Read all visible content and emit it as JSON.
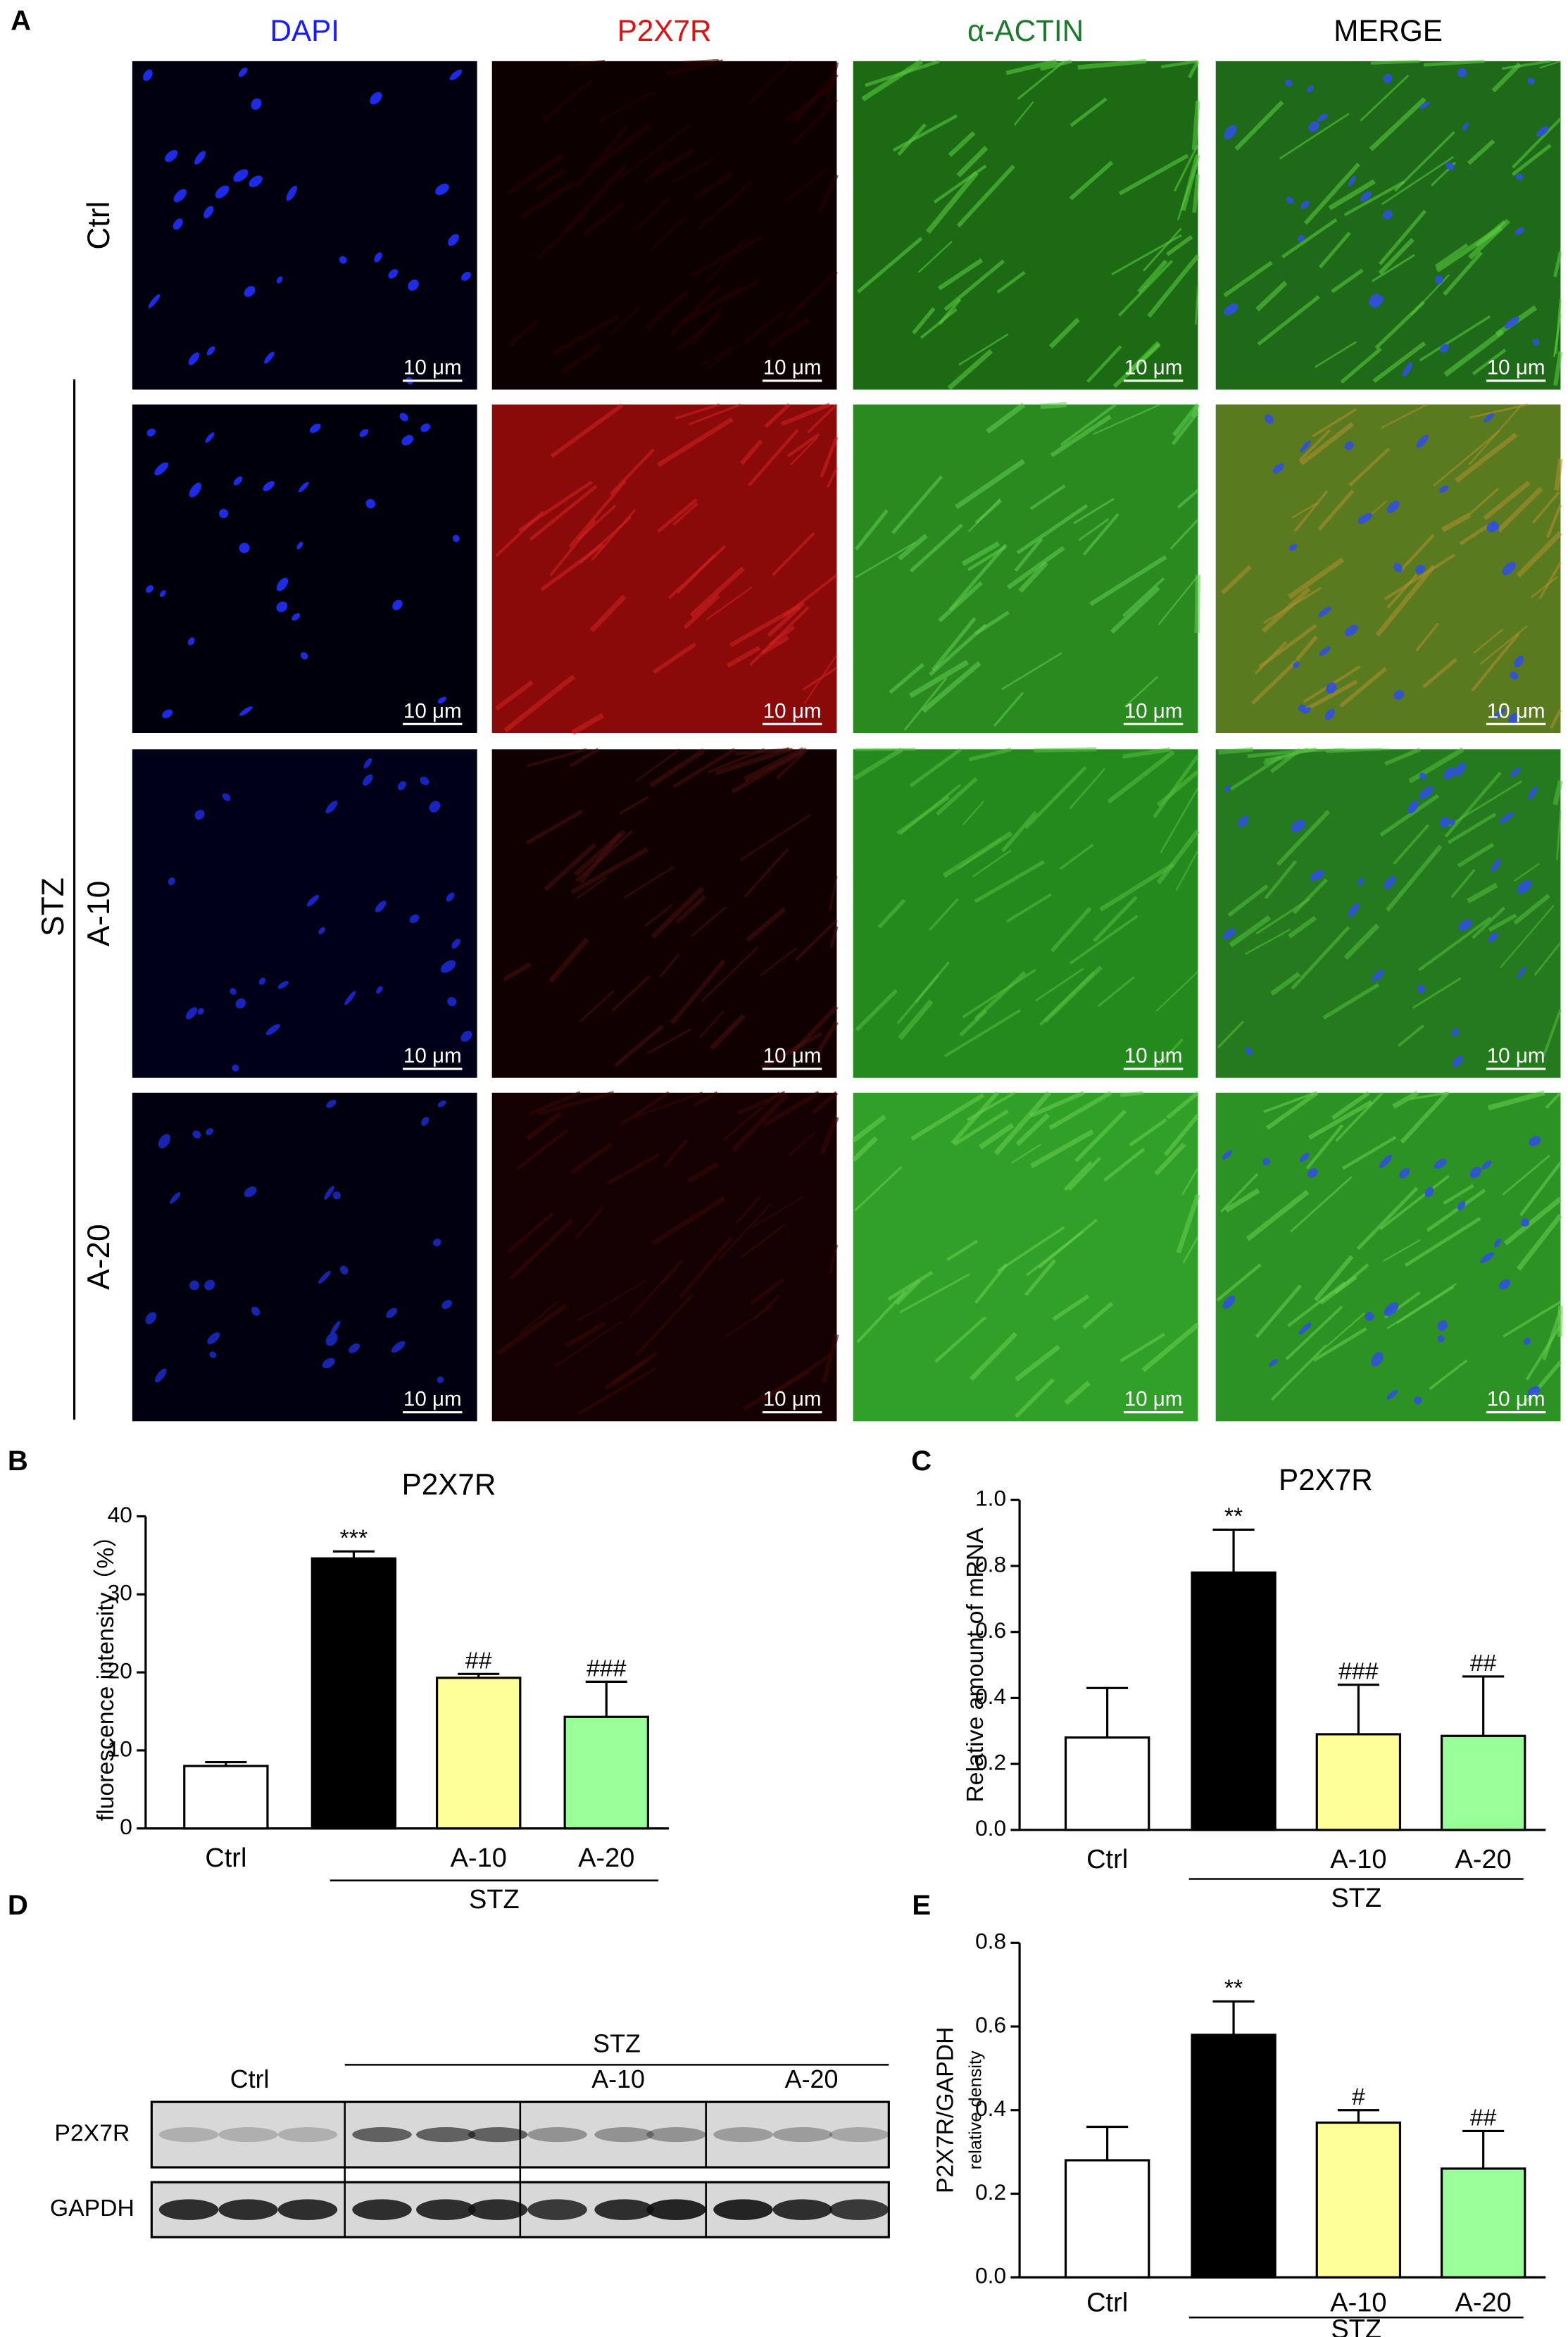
{
  "letters": [
    "A",
    "B",
    "C",
    "D",
    "E"
  ],
  "panel_a": {
    "columns": [
      "DAPI",
      "P2X7R",
      "α-ACTIN",
      "MERGE"
    ],
    "rows": [
      "Ctrl",
      "A-10",
      "A-20"
    ],
    "group": "STZ",
    "scale_bar": "10 μm"
  },
  "panel_d": {
    "group": "STZ",
    "groups": [
      "Ctrl",
      "A-10",
      "A-20"
    ],
    "rows": [
      "P2X7R",
      "GAPDH"
    ]
  },
  "chart_data": [
    {
      "type": "bar",
      "title": "P2X7R",
      "ylabel": "fluorescence intensity（%）",
      "categories": [
        "Ctrl",
        null,
        "A-10",
        "A-20"
      ],
      "group_label": "STZ",
      "series": [
        {
          "values": [
            8,
            34.6,
            19.3,
            14.3
          ],
          "errors": [
            0.5,
            0.9,
            0.5,
            4.5
          ],
          "colors": [
            "#ffffff",
            "#000000",
            "#ffff99",
            "#99ff99"
          ],
          "annotations": [
            null,
            "***",
            "##",
            "###"
          ]
        }
      ],
      "ylim": [
        0,
        40
      ],
      "yticks": [
        0,
        10,
        20,
        30,
        40
      ]
    },
    {
      "type": "bar",
      "title": "P2X7R",
      "ylabel": "Relative amount of mRNA",
      "categories": [
        "Ctrl",
        null,
        "A-10",
        "A-20"
      ],
      "group_label": "STZ",
      "series": [
        {
          "values": [
            0.28,
            0.78,
            0.29,
            0.285
          ],
          "errors": [
            0.15,
            0.13,
            0.15,
            0.18
          ],
          "colors": [
            "#ffffff",
            "#000000",
            "#ffff99",
            "#99ff99"
          ],
          "annotations": [
            null,
            "**",
            "###",
            "##"
          ]
        }
      ],
      "ylim": [
        0,
        1.0
      ],
      "yticks": [
        {
          "value": 0,
          "label": "0.0"
        },
        {
          "value": 0.2,
          "label": "0.2"
        },
        {
          "value": 0.4,
          "label": "0.4"
        },
        {
          "value": 0.6,
          "label": "0.6"
        },
        {
          "value": 0.8,
          "label": "0.8"
        },
        {
          "value": 1.0,
          "label": "1.0"
        }
      ]
    },
    {
      "type": "bar",
      "ylabel": "P2X7R/GAPDH",
      "ylabel_sub": "relative density",
      "categories": [
        "Ctrl",
        null,
        "A-10",
        "A-20"
      ],
      "group_label": "STZ",
      "series": [
        {
          "values": [
            0.28,
            0.58,
            0.37,
            0.26
          ],
          "errors": [
            0.08,
            0.08,
            0.03,
            0.09
          ],
          "colors": [
            "#ffffff",
            "#000000",
            "#ffff99",
            "#99ff99"
          ],
          "annotations": [
            null,
            "**",
            "#",
            "##"
          ]
        }
      ],
      "ylim": [
        0,
        0.8
      ],
      "yticks": [
        {
          "value": 0,
          "label": "0.0"
        },
        {
          "value": 0.2,
          "label": "0.2"
        },
        {
          "value": 0.4,
          "label": "0.4"
        },
        {
          "value": 0.6,
          "label": "0.6"
        },
        {
          "value": 0.8,
          "label": "0.8"
        }
      ]
    }
  ]
}
